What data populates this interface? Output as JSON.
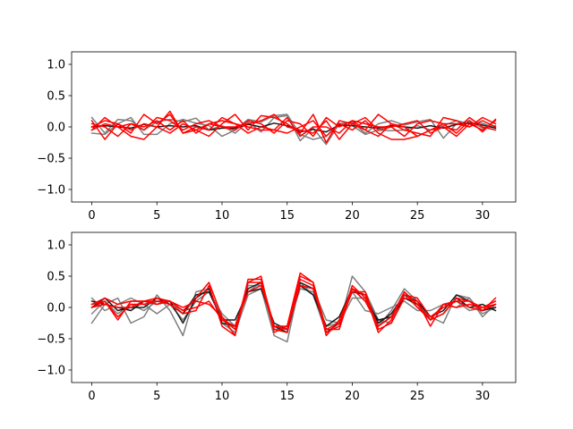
{
  "chart_data": [
    {
      "type": "line",
      "title": "",
      "xlabel": "",
      "ylabel": "",
      "xlim": [
        -1.55,
        32.55
      ],
      "ylim": [
        -1.2,
        1.2
      ],
      "xticks": [
        0,
        5,
        10,
        15,
        20,
        25,
        30
      ],
      "yticks": [
        -1.0,
        -0.5,
        0.0,
        0.5,
        1.0
      ],
      "xtick_labels": [
        "0",
        "5",
        "10",
        "15",
        "20",
        "25",
        "30"
      ],
      "ytick_labels": [
        "−1.0",
        "−0.5",
        "0.0",
        "0.5",
        "1.0"
      ],
      "grid": false,
      "series_colors": {
        "gray": "#7f7f7f",
        "black": "#1a1a1a",
        "red": "#ff0000"
      },
      "x": [
        0,
        1,
        2,
        3,
        4,
        5,
        6,
        7,
        8,
        9,
        10,
        11,
        12,
        13,
        14,
        15,
        16,
        17,
        18,
        19,
        20,
        21,
        22,
        23,
        24,
        25,
        26,
        27,
        28,
        29,
        30,
        31
      ],
      "series": [
        {
          "color": "gray",
          "values": [
            0.15,
            -0.1,
            0.12,
            0.1,
            -0.05,
            0.08,
            0.12,
            0.08,
            0.14,
            -0.05,
            0.02,
            -0.1,
            0.08,
            -0.08,
            0.15,
            0.18,
            -0.22,
            -0.02,
            -0.28,
            0.05,
            0.08,
            -0.1,
            0.05,
            0.1,
            0.03,
            0.08,
            0.12,
            -0.18,
            0.05,
            0.1,
            -0.02,
            0.02
          ]
        },
        {
          "color": "gray",
          "values": [
            -0.1,
            -0.12,
            0.05,
            0.15,
            -0.12,
            -0.12,
            0.05,
            0.12,
            0.06,
            0.02,
            -0.15,
            -0.05,
            0.12,
            0.08,
            0.18,
            0.2,
            -0.12,
            -0.2,
            -0.15,
            0.06,
            0.02,
            -0.12,
            -0.05,
            -0.06,
            -0.05,
            0.02,
            -0.05,
            0.02,
            0.1,
            0.05,
            0.06,
            -0.02
          ]
        },
        {
          "color": "black",
          "values": [
            0.0,
            0.02,
            0.0,
            -0.02,
            0.04,
            0.0,
            0.02,
            0.0,
            0.02,
            -0.05,
            -0.02,
            -0.02,
            0.04,
            0.0,
            0.06,
            0.02,
            -0.08,
            -0.04,
            -0.08,
            0.03,
            0.02,
            0.0,
            -0.02,
            0.02,
            0.0,
            -0.02,
            0.02,
            -0.02,
            0.04,
            0.06,
            0.03,
            -0.02
          ]
        },
        {
          "color": "red",
          "values": [
            0.1,
            -0.2,
            0.05,
            -0.1,
            0.2,
            0.05,
            0.2,
            -0.1,
            -0.05,
            -0.15,
            0.05,
            0.2,
            -0.05,
            0.18,
            0.15,
            0.05,
            -0.1,
            0.2,
            -0.25,
            0.1,
            0.05,
            0.15,
            -0.05,
            0.0,
            -0.15,
            0.05,
            0.1,
            0.05,
            -0.1,
            0.1,
            -0.08,
            0.12
          ]
        },
        {
          "color": "red",
          "values": [
            -0.05,
            0.15,
            0.0,
            0.05,
            0.0,
            0.1,
            -0.05,
            0.1,
            -0.1,
            0.05,
            0.0,
            -0.05,
            0.1,
            0.05,
            -0.1,
            0.1,
            0.05,
            -0.15,
            0.15,
            0.0,
            0.1,
            -0.05,
            0.2,
            0.05,
            -0.05,
            -0.1,
            -0.15,
            0.15,
            0.1,
            0.0,
            0.15,
            0.05
          ]
        },
        {
          "color": "red",
          "values": [
            0.05,
            0.0,
            -0.15,
            0.05,
            -0.05,
            0.15,
            0.1,
            -0.05,
            0.05,
            0.1,
            0.0,
            0.0,
            0.05,
            0.1,
            0.2,
            0.0,
            -0.05,
            -0.1,
            0.1,
            -0.2,
            0.05,
            -0.05,
            -0.15,
            0.05,
            0.0,
            -0.15,
            -0.05,
            0.0,
            -0.15,
            0.05,
            -0.05,
            0.1
          ]
        },
        {
          "color": "red",
          "values": [
            -0.05,
            0.05,
            0.0,
            -0.15,
            -0.2,
            0.0,
            -0.1,
            0.05,
            -0.05,
            0.05,
            0.1,
            0.05,
            0.0,
            -0.05,
            -0.05,
            -0.1,
            0.0,
            0.1,
            -0.15,
            0.05,
            -0.05,
            0.1,
            -0.1,
            -0.2,
            -0.2,
            -0.15,
            -0.05,
            0.05,
            0.05,
            0.0,
            0.1,
            0.0
          ]
        },
        {
          "color": "red",
          "values": [
            0.0,
            0.1,
            0.05,
            -0.05,
            0.05,
            0.0,
            0.25,
            -0.1,
            0.0,
            -0.05,
            0.15,
            0.05,
            -0.1,
            0.0,
            -0.05,
            0.15,
            -0.15,
            0.0,
            0.0,
            -0.1,
            0.1,
            0.05,
            0.0,
            0.0,
            0.05,
            0.1,
            -0.1,
            0.0,
            -0.05,
            0.15,
            0.0,
            -0.05
          ]
        }
      ]
    },
    {
      "type": "line",
      "title": "",
      "xlabel": "",
      "ylabel": "",
      "xlim": [
        -1.55,
        32.55
      ],
      "ylim": [
        -1.2,
        1.2
      ],
      "xticks": [
        0,
        5,
        10,
        15,
        20,
        25,
        30
      ],
      "yticks": [
        -1.0,
        -0.5,
        0.0,
        0.5,
        1.0
      ],
      "xtick_labels": [
        "0",
        "5",
        "10",
        "15",
        "20",
        "25",
        "30"
      ],
      "ytick_labels": [
        "−1.0",
        "−0.5",
        "0.0",
        "0.5",
        "1.0"
      ],
      "grid": false,
      "series_colors": {
        "gray": "#7f7f7f",
        "black": "#1a1a1a",
        "red": "#ff0000"
      },
      "x": [
        0,
        1,
        2,
        3,
        4,
        5,
        6,
        7,
        8,
        9,
        10,
        11,
        12,
        13,
        14,
        15,
        16,
        17,
        18,
        19,
        20,
        21,
        22,
        23,
        24,
        25,
        26,
        27,
        28,
        29,
        30,
        31
      ],
      "series": [
        {
          "color": "gray",
          "values": [
            -0.25,
            0.05,
            0.15,
            -0.25,
            -0.15,
            0.2,
            -0.05,
            -0.45,
            0.25,
            0.3,
            -0.25,
            -0.4,
            0.2,
            0.3,
            -0.45,
            -0.55,
            0.4,
            0.2,
            -0.4,
            -0.3,
            0.5,
            0.25,
            -0.2,
            -0.25,
            0.2,
            0.0,
            -0.15,
            -0.25,
            0.2,
            0.15,
            -0.1,
            0.0
          ]
        },
        {
          "color": "gray",
          "values": [
            0.15,
            -0.05,
            0.05,
            0.15,
            0.05,
            -0.1,
            0.05,
            -0.2,
            0.1,
            0.25,
            -0.1,
            -0.3,
            0.25,
            0.4,
            -0.3,
            -0.4,
            0.35,
            0.3,
            -0.2,
            -0.25,
            0.15,
            0.15,
            -0.3,
            -0.05,
            0.3,
            0.1,
            -0.2,
            0.05,
            0.0,
            0.15,
            -0.15,
            0.05
          ]
        },
        {
          "color": "gray",
          "values": [
            -0.1,
            0.1,
            -0.1,
            0.05,
            -0.05,
            0.1,
            0.1,
            -0.1,
            0.15,
            0.3,
            -0.2,
            -0.35,
            0.35,
            0.35,
            -0.35,
            -0.35,
            0.3,
            0.25,
            -0.3,
            -0.25,
            0.25,
            -0.05,
            -0.1,
            0.0,
            0.1,
            -0.05,
            -0.05,
            0.05,
            0.1,
            -0.05,
            0.0,
            0.05
          ]
        },
        {
          "color": "black",
          "values": [
            0.1,
            0.05,
            0.0,
            -0.05,
            0.1,
            0.05,
            0.1,
            -0.25,
            0.15,
            0.3,
            -0.25,
            -0.3,
            0.3,
            0.4,
            -0.3,
            -0.4,
            0.4,
            0.3,
            -0.4,
            -0.25,
            0.25,
            0.2,
            -0.25,
            -0.1,
            0.2,
            0.1,
            -0.15,
            -0.05,
            0.2,
            0.1,
            -0.05,
            0.0
          ]
        },
        {
          "color": "black",
          "values": [
            0.0,
            0.15,
            -0.05,
            0.0,
            0.0,
            0.15,
            0.05,
            -0.1,
            0.2,
            0.25,
            -0.2,
            -0.2,
            0.25,
            0.3,
            -0.25,
            -0.35,
            0.35,
            0.2,
            -0.3,
            -0.15,
            0.3,
            0.1,
            -0.2,
            -0.15,
            0.15,
            0.05,
            -0.2,
            -0.1,
            0.15,
            0.0,
            0.05,
            -0.05
          ]
        },
        {
          "color": "red",
          "values": [
            0.05,
            0.1,
            -0.2,
            0.1,
            0.1,
            0.1,
            0.05,
            -0.1,
            -0.05,
            0.35,
            -0.3,
            -0.45,
            0.45,
            0.45,
            -0.3,
            -0.3,
            0.5,
            0.4,
            -0.45,
            -0.2,
            0.3,
            0.2,
            -0.4,
            -0.2,
            0.25,
            0.0,
            -0.2,
            0.05,
            0.1,
            0.0,
            -0.05,
            0.15
          ]
        },
        {
          "color": "red",
          "values": [
            0.05,
            0.15,
            0.05,
            0.1,
            0.1,
            0.15,
            0.1,
            0.0,
            0.1,
            0.05,
            -0.15,
            -0.45,
            0.4,
            0.5,
            -0.4,
            -0.3,
            0.55,
            0.4,
            -0.35,
            -0.35,
            0.3,
            0.1,
            -0.3,
            -0.15,
            0.2,
            0.15,
            -0.15,
            0.0,
            0.1,
            0.1,
            0.0,
            0.05
          ]
        },
        {
          "color": "red",
          "values": [
            0.0,
            0.1,
            -0.15,
            0.05,
            0.05,
            0.1,
            0.1,
            -0.05,
            0.15,
            0.4,
            -0.15,
            -0.35,
            0.4,
            0.4,
            -0.35,
            -0.4,
            0.45,
            0.35,
            -0.4,
            -0.3,
            0.35,
            0.15,
            -0.3,
            -0.15,
            0.25,
            0.05,
            -0.2,
            -0.1,
            0.15,
            0.1,
            -0.05,
            0.05
          ]
        },
        {
          "color": "red",
          "values": [
            0.0,
            0.05,
            0.0,
            0.0,
            0.1,
            0.05,
            0.1,
            -0.05,
            0.0,
            0.1,
            -0.2,
            -0.3,
            0.25,
            0.35,
            -0.3,
            -0.35,
            0.35,
            0.3,
            -0.35,
            -0.25,
            0.25,
            0.25,
            -0.35,
            -0.25,
            0.15,
            0.1,
            -0.3,
            0.05,
            0.0,
            0.05,
            0.0,
            0.1
          ]
        }
      ]
    }
  ]
}
